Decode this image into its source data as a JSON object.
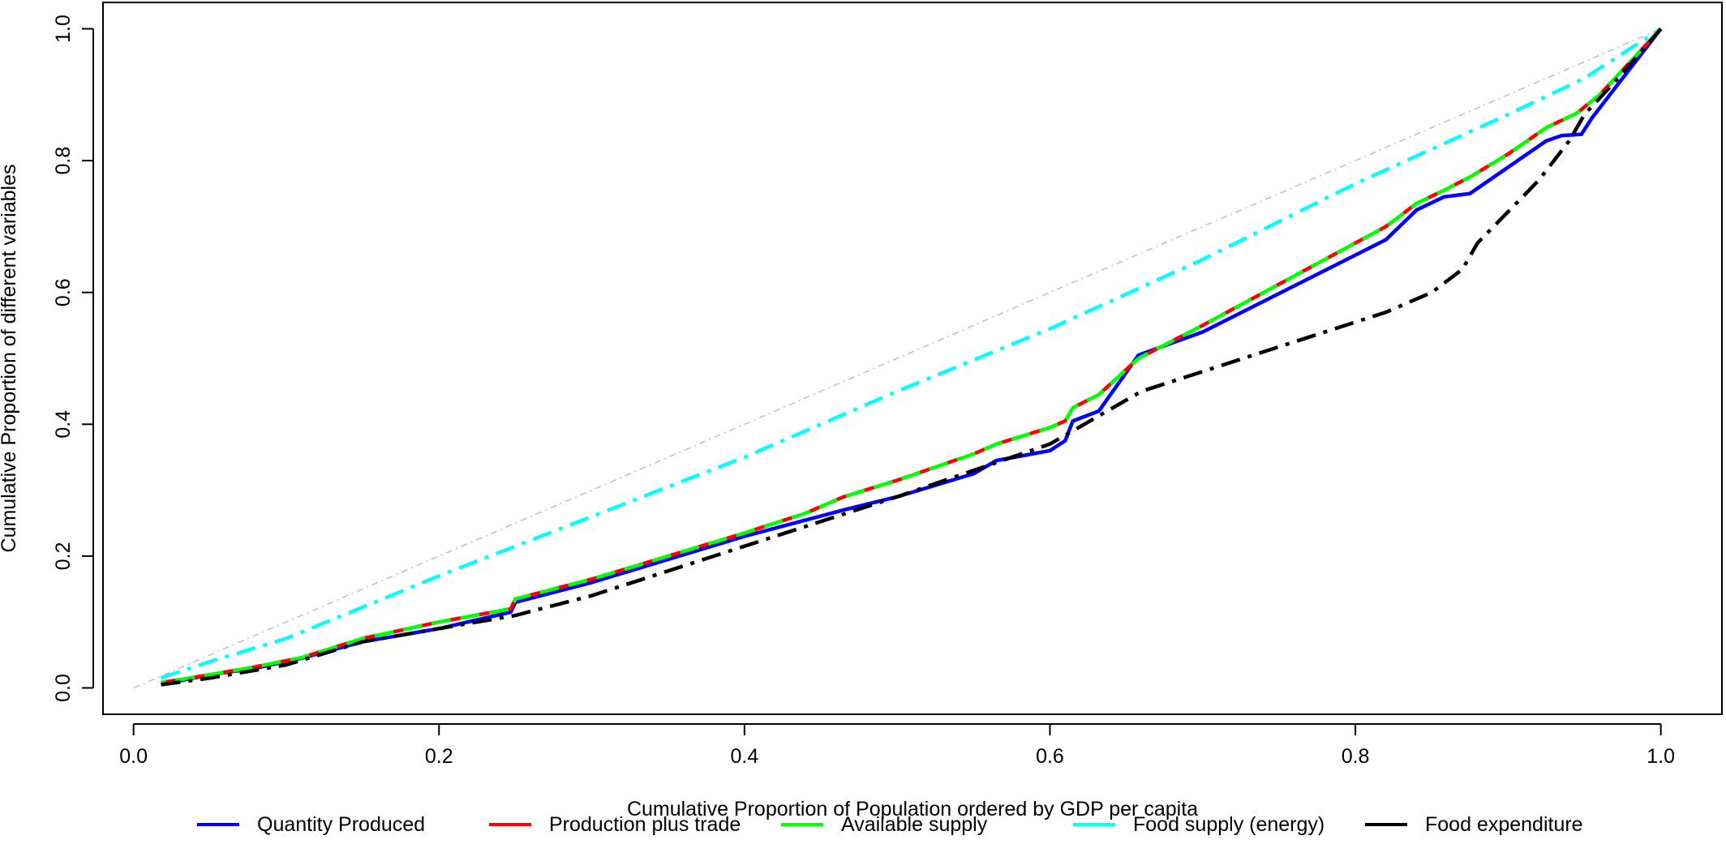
{
  "chart_data": {
    "type": "line",
    "title": "",
    "xlabel": "Cumulative Proportion of Population ordered by GDP per capita",
    "ylabel": "Cumulative Proportion of different variables",
    "xlim": [
      -0.02,
      1.04
    ],
    "ylim": [
      -0.04,
      1.04
    ],
    "x_ticks": [
      0.0,
      0.2,
      0.4,
      0.6,
      0.8,
      1.0
    ],
    "x_tick_labels": [
      "0.0",
      "0.2",
      "0.4",
      "0.6",
      "0.8",
      "1.0"
    ],
    "y_ticks": [
      0.0,
      0.2,
      0.4,
      0.6,
      0.8,
      1.0
    ],
    "y_tick_labels": [
      "0.0",
      "0.2",
      "0.4",
      "0.6",
      "0.8",
      "1.0"
    ],
    "grid": false,
    "legend_position": "bottom",
    "reference_line": {
      "x": [
        0,
        1
      ],
      "y": [
        0,
        1
      ],
      "color": "#bebebe",
      "style": "dash-dot"
    },
    "series": [
      {
        "name": "Quantity Produced",
        "color": "#0000ff",
        "style": "solid",
        "x": [
          0.018,
          0.05,
          0.08,
          0.11,
          0.15,
          0.2,
          0.247,
          0.25,
          0.3,
          0.4,
          0.465,
          0.5,
          0.55,
          0.565,
          0.6,
          0.61,
          0.615,
          0.632,
          0.658,
          0.7,
          0.82,
          0.84,
          0.858,
          0.875,
          0.9,
          0.925,
          0.935,
          0.948,
          0.955,
          0.97,
          1.0
        ],
        "y": [
          0.005,
          0.02,
          0.03,
          0.045,
          0.07,
          0.09,
          0.115,
          0.13,
          0.16,
          0.23,
          0.27,
          0.29,
          0.325,
          0.345,
          0.36,
          0.375,
          0.405,
          0.42,
          0.505,
          0.54,
          0.68,
          0.725,
          0.745,
          0.75,
          0.79,
          0.83,
          0.838,
          0.84,
          0.865,
          0.91,
          1.0
        ]
      },
      {
        "name": "Production plus trade",
        "color": "#ff0000",
        "style": "dashed",
        "x": [
          0.018,
          0.05,
          0.08,
          0.11,
          0.15,
          0.2,
          0.247,
          0.25,
          0.3,
          0.4,
          0.44,
          0.465,
          0.5,
          0.55,
          0.565,
          0.6,
          0.61,
          0.615,
          0.632,
          0.658,
          0.7,
          0.82,
          0.84,
          0.858,
          0.875,
          0.9,
          0.925,
          0.945,
          0.96,
          1.0
        ],
        "y": [
          0.008,
          0.02,
          0.032,
          0.046,
          0.075,
          0.1,
          0.12,
          0.135,
          0.165,
          0.235,
          0.265,
          0.29,
          0.315,
          0.355,
          0.37,
          0.395,
          0.405,
          0.425,
          0.445,
          0.5,
          0.55,
          0.7,
          0.735,
          0.755,
          0.775,
          0.81,
          0.85,
          0.872,
          0.9,
          1.0
        ]
      },
      {
        "name": "Available supply",
        "color": "#00ff00",
        "style": "dashed",
        "x": [
          0.018,
          0.05,
          0.08,
          0.11,
          0.15,
          0.2,
          0.247,
          0.25,
          0.3,
          0.4,
          0.44,
          0.465,
          0.5,
          0.55,
          0.565,
          0.6,
          0.61,
          0.615,
          0.632,
          0.658,
          0.7,
          0.82,
          0.84,
          0.858,
          0.875,
          0.9,
          0.925,
          0.945,
          0.96,
          1.0
        ],
        "y": [
          0.008,
          0.02,
          0.032,
          0.046,
          0.075,
          0.1,
          0.12,
          0.135,
          0.165,
          0.235,
          0.265,
          0.29,
          0.315,
          0.355,
          0.37,
          0.395,
          0.405,
          0.425,
          0.445,
          0.5,
          0.55,
          0.7,
          0.735,
          0.755,
          0.775,
          0.81,
          0.85,
          0.872,
          0.9,
          1.0
        ]
      },
      {
        "name": "Food supply (energy)",
        "color": "#00ffff",
        "style": "dash-dot",
        "x": [
          0.018,
          0.05,
          0.1,
          0.2,
          0.3,
          0.4,
          0.5,
          0.6,
          0.7,
          0.8,
          0.9,
          0.95,
          1.0
        ],
        "y": [
          0.015,
          0.04,
          0.075,
          0.17,
          0.26,
          0.35,
          0.45,
          0.545,
          0.65,
          0.765,
          0.87,
          0.925,
          1.0
        ]
      },
      {
        "name": "Food expenditure",
        "color": "#000000",
        "style": "dash-dot",
        "x": [
          0.018,
          0.05,
          0.1,
          0.15,
          0.2,
          0.25,
          0.3,
          0.4,
          0.5,
          0.6,
          0.66,
          0.7,
          0.8,
          0.82,
          0.85,
          0.87,
          0.88,
          0.92,
          0.94,
          0.95,
          0.97,
          1.0
        ],
        "y": [
          0.005,
          0.015,
          0.035,
          0.07,
          0.09,
          0.11,
          0.14,
          0.215,
          0.29,
          0.37,
          0.45,
          0.48,
          0.555,
          0.57,
          0.6,
          0.635,
          0.675,
          0.77,
          0.83,
          0.87,
          0.92,
          1.0
        ]
      }
    ]
  }
}
